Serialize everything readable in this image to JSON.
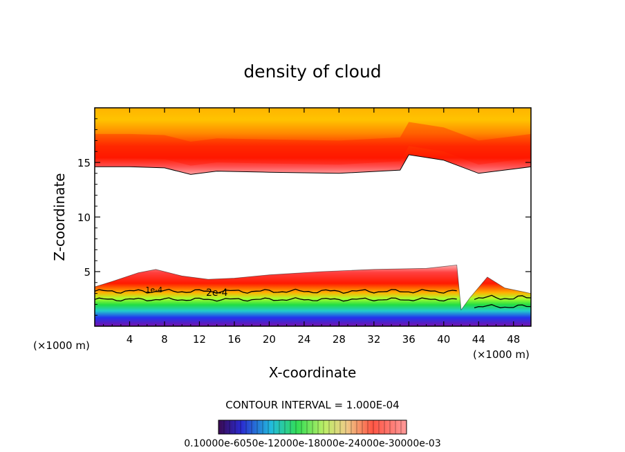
{
  "chart_data": {
    "type": "heatmap",
    "title": "density of cloud",
    "xlabel": "X-coordinate",
    "ylabel": "Z-coordinate",
    "x_unit_left": "(×1000 m)",
    "x_unit_right": "(×1000 m)",
    "xlim": [
      0,
      50
    ],
    "ylim": [
      0,
      20
    ],
    "x_ticks": [
      4,
      8,
      12,
      16,
      20,
      24,
      28,
      32,
      36,
      40,
      44,
      48
    ],
    "y_ticks": [
      5,
      10,
      15
    ],
    "x_tick_labels": [
      "4",
      "8",
      "12",
      "16",
      "20",
      "24",
      "28",
      "32",
      "36",
      "40",
      "44",
      "48"
    ],
    "y_tick_labels": [
      "5",
      "10",
      "15"
    ],
    "contour_labels": [
      {
        "text": "2e-4",
        "x": 14.0,
        "z": 2.8
      },
      {
        "text": "1e-4",
        "x": 6.8,
        "z": 3.1
      }
    ],
    "contour_interval_text": "CONTOUR INTERVAL = 1.000E-04",
    "colorbar_label_text": "0.10000e-6050e-12000e-18000e-24000e-30000e-03",
    "colorbar_range": [
      0.0,
      0.0003
    ],
    "upper_cloud": {
      "z_top": 20,
      "base_profile_x": [
        0,
        4,
        8,
        11,
        14,
        20,
        28,
        35,
        36,
        40,
        44,
        48,
        50
      ],
      "base_profile_z": [
        14.6,
        14.6,
        14.5,
        13.9,
        14.2,
        14.1,
        14.0,
        14.3,
        15.7,
        15.2,
        14.0,
        14.4,
        14.6
      ],
      "core_z": 16.3
    },
    "lower_cloud": {
      "top_profile_x": [
        0,
        2,
        5,
        7,
        10,
        13,
        16,
        20,
        26,
        32,
        38,
        41.5,
        42,
        43,
        45,
        47,
        50
      ],
      "top_profile_z": [
        3.6,
        4.1,
        4.9,
        5.2,
        4.6,
        4.3,
        4.4,
        4.7,
        5.0,
        5.2,
        5.3,
        5.6,
        1.5,
        2.6,
        4.5,
        3.5,
        3.0
      ],
      "contour_1e4_z": 3.2,
      "contour_2e4_z": 2.8
    }
  },
  "colors": {
    "yellow": "#ffc800",
    "orange": "#ff7a00",
    "red": "#ff1400",
    "pink": "#ff9a9a",
    "green": "#33dd33",
    "cyan": "#33cccc",
    "blue": "#2233ee",
    "purple": "#7711aa"
  }
}
